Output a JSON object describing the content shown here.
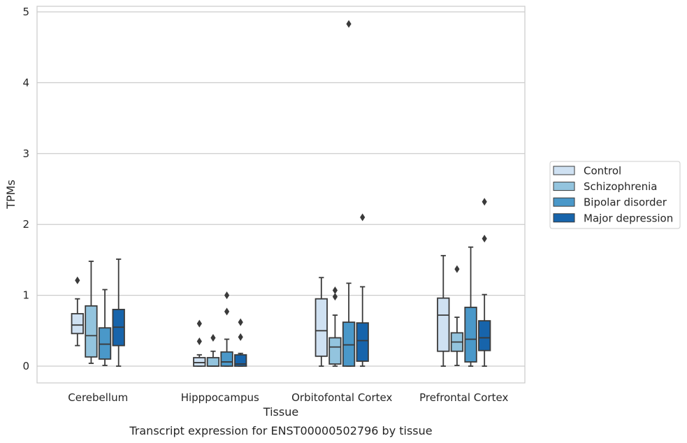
{
  "chart_data": {
    "type": "box",
    "title": "Transcript expression for ENST00000502796 by tissue",
    "xlabel": "Tissue",
    "ylabel": "TPMs",
    "ylim": [
      -0.23,
      5.08
    ],
    "yticks": [
      0,
      1,
      2,
      3,
      4,
      5
    ],
    "grid": "horizontal",
    "legend_position": "right",
    "categories": [
      "Cerebellum",
      "Hipppocampus",
      "Orbitofontal Cortex",
      "Prefrontal Cortex"
    ],
    "series": [
      {
        "name": "Control",
        "color": "#cfe1f2",
        "boxes": [
          {
            "whisker_low": 0.29,
            "q1": 0.46,
            "median": 0.58,
            "q3": 0.74,
            "whisker_high": 0.95,
            "outliers": [
              1.21
            ]
          },
          {
            "whisker_low": 0.0,
            "q1": 0.0,
            "median": 0.05,
            "q3": 0.12,
            "whisker_high": 0.16,
            "outliers": [
              0.35,
              0.6
            ]
          },
          {
            "whisker_low": 0.0,
            "q1": 0.14,
            "median": 0.5,
            "q3": 0.95,
            "whisker_high": 1.25,
            "outliers": []
          },
          {
            "whisker_low": 0.0,
            "q1": 0.21,
            "median": 0.72,
            "q3": 0.96,
            "whisker_high": 1.56,
            "outliers": []
          }
        ]
      },
      {
        "name": "Schizophrenia",
        "color": "#93c4de",
        "boxes": [
          {
            "whisker_low": 0.04,
            "q1": 0.13,
            "median": 0.43,
            "q3": 0.85,
            "whisker_high": 1.48,
            "outliers": []
          },
          {
            "whisker_low": 0.0,
            "q1": 0.0,
            "median": 0.0,
            "q3": 0.12,
            "whisker_high": 0.21,
            "outliers": [
              0.4
            ]
          },
          {
            "whisker_low": 0.0,
            "q1": 0.03,
            "median": 0.27,
            "q3": 0.4,
            "whisker_high": 0.72,
            "outliers": [
              0.98,
              1.07
            ]
          },
          {
            "whisker_low": 0.01,
            "q1": 0.21,
            "median": 0.34,
            "q3": 0.47,
            "whisker_high": 0.69,
            "outliers": [
              1.37
            ]
          }
        ]
      },
      {
        "name": "Bipolar disorder",
        "color": "#4a98c9",
        "boxes": [
          {
            "whisker_low": 0.01,
            "q1": 0.1,
            "median": 0.31,
            "q3": 0.54,
            "whisker_high": 1.08,
            "outliers": []
          },
          {
            "whisker_low": 0.0,
            "q1": 0.0,
            "median": 0.06,
            "q3": 0.2,
            "whisker_high": 0.38,
            "outliers": [
              0.77,
              1.0
            ]
          },
          {
            "whisker_low": 0.0,
            "q1": 0.0,
            "median": 0.3,
            "q3": 0.62,
            "whisker_high": 1.17,
            "outliers": [
              4.83
            ]
          },
          {
            "whisker_low": 0.0,
            "q1": 0.06,
            "median": 0.38,
            "q3": 0.83,
            "whisker_high": 1.68,
            "outliers": []
          }
        ]
      },
      {
        "name": "Major depression",
        "color": "#1764ab",
        "boxes": [
          {
            "whisker_low": 0.0,
            "q1": 0.29,
            "median": 0.55,
            "q3": 0.8,
            "whisker_high": 1.51,
            "outliers": []
          },
          {
            "whisker_low": 0.0,
            "q1": 0.0,
            "median": 0.03,
            "q3": 0.16,
            "whisker_high": 0.18,
            "outliers": [
              0.41,
              0.62
            ]
          },
          {
            "whisker_low": 0.0,
            "q1": 0.07,
            "median": 0.36,
            "q3": 0.61,
            "whisker_high": 1.12,
            "outliers": [
              2.1
            ]
          },
          {
            "whisker_low": 0.0,
            "q1": 0.22,
            "median": 0.4,
            "q3": 0.64,
            "whisker_high": 1.01,
            "outliers": [
              1.8,
              2.32
            ]
          }
        ]
      }
    ]
  }
}
